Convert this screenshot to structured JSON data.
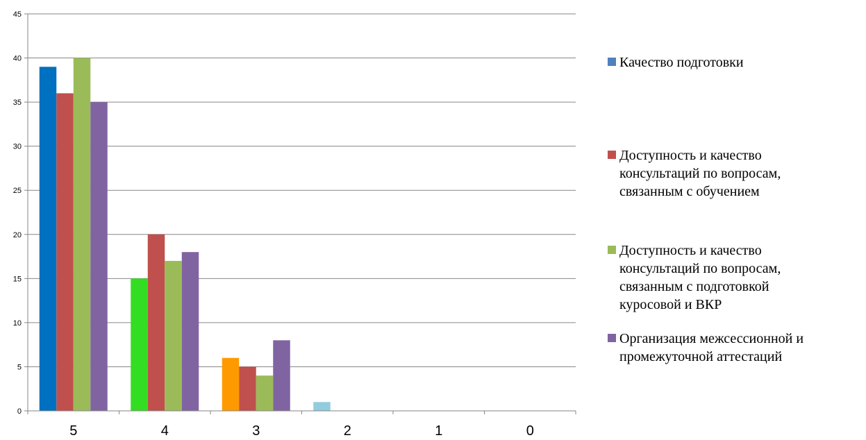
{
  "chart_data": {
    "type": "bar",
    "categories": [
      "5",
      "4",
      "3",
      "2",
      "1",
      "0"
    ],
    "ylim": [
      0,
      45
    ],
    "yticks": [
      0,
      5,
      10,
      15,
      20,
      25,
      30,
      35,
      40,
      45
    ],
    "grid": true,
    "legend_position": "right",
    "series": [
      {
        "name": "Качество подготовки",
        "legend_lines": [
          "Качество подготовки"
        ],
        "color": "#4f81bd",
        "values": [
          39,
          15,
          6,
          1,
          0,
          0
        ],
        "point_colors": [
          "#0070c0",
          "#33dd22",
          "#ff9900",
          "#93cddd",
          "#4f81bd",
          "#4f81bd"
        ]
      },
      {
        "name": "Доступность и качество консультаций по вопросам, связанным с обучением",
        "legend_lines": [
          "Доступность и качество",
          "консультаций по вопросам,",
          "связанным с обучением"
        ],
        "color": "#c0504d",
        "values": [
          36,
          20,
          5,
          0,
          0,
          0
        ]
      },
      {
        "name": "Доступность и качество консультаций по вопросам, связанным с подготовкой куросовой и ВКР",
        "legend_lines": [
          "Доступность и качество",
          "консультаций по вопросам,",
          "связанным с подготовкой",
          "куросовой и ВКР"
        ],
        "color": "#9bbb59",
        "values": [
          40,
          17,
          4,
          0,
          0,
          0
        ]
      },
      {
        "name": "Организация межсессионной и промежуточной аттестаций",
        "legend_lines": [
          "Организация межсессионной и",
          "промежуточной аттестаций"
        ],
        "color": "#8064a2",
        "values": [
          35,
          18,
          8,
          0,
          0,
          0
        ]
      }
    ]
  }
}
